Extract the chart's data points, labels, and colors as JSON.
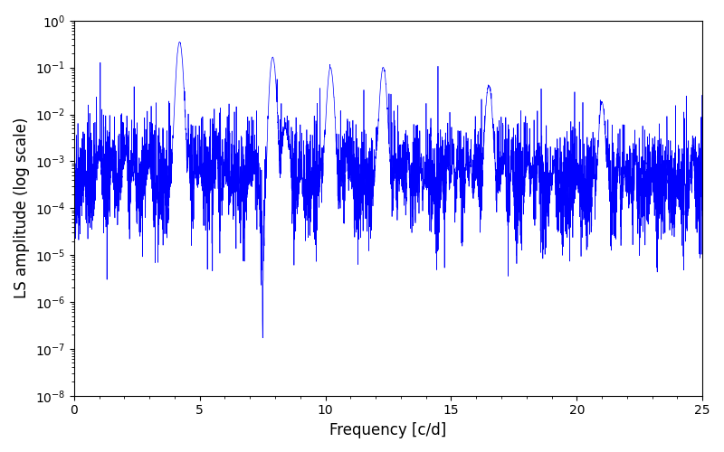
{
  "title": "",
  "xlabel": "Frequency [c/d]",
  "ylabel": "LS amplitude (log scale)",
  "xlim": [
    0,
    25
  ],
  "ylim": [
    1e-08,
    1.0
  ],
  "line_color": "#0000ff",
  "line_width": 0.5,
  "figsize": [
    8.0,
    5.0
  ],
  "dpi": 100,
  "seed": 42,
  "n_points": 5000,
  "freq_max": 25.0,
  "base_noise": 0.0001,
  "peak_freqs": [
    4.2,
    7.9,
    8.4,
    10.2,
    12.3,
    16.5,
    21.0
  ],
  "peak_amps": [
    0.35,
    0.17,
    0.005,
    0.1,
    0.1,
    0.04,
    0.009
  ],
  "peak_widths": [
    0.08,
    0.08,
    0.08,
    0.08,
    0.08,
    0.08,
    0.08
  ]
}
